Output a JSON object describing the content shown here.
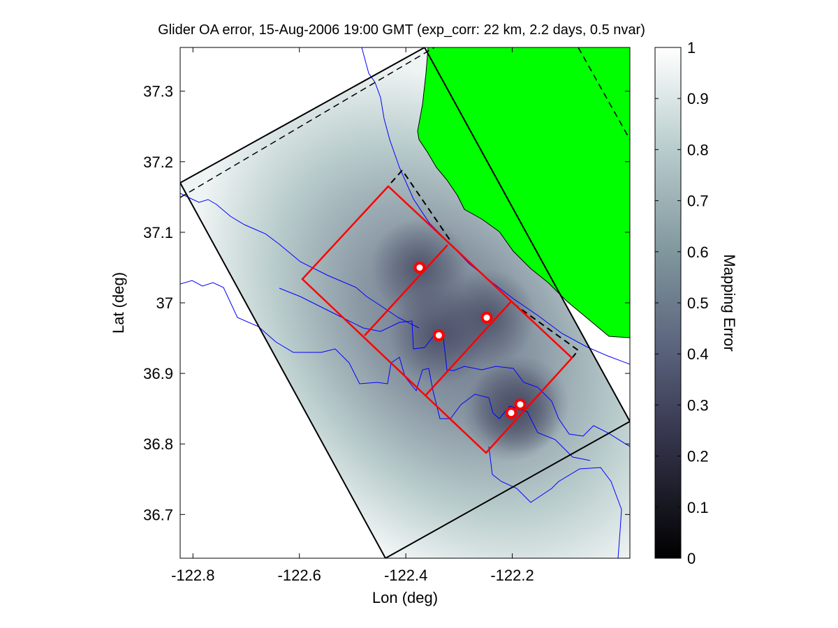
{
  "chart_data": {
    "type": "heatmap",
    "title": "Glider OA error, 15-Aug-2006 19:00 GMT (exp_corr: 22 km, 2.2 days, 0.5 nvar)",
    "xlabel": "Lon (deg)",
    "ylabel": "Lat (deg)",
    "xlim": [
      -122.824,
      -121.979
    ],
    "ylim": [
      36.638,
      37.362
    ],
    "xticks": [
      -122.8,
      -122.6,
      -122.4,
      -122.2
    ],
    "xtick_labels": [
      "-122.8",
      "-122.6",
      "-122.4",
      "-122.2"
    ],
    "yticks": [
      36.7,
      36.8,
      36.9,
      37.0,
      37.1,
      37.2,
      37.3
    ],
    "ytick_labels": [
      "36.7",
      "36.8",
      "36.9",
      "37",
      "37.1",
      "37.2",
      "37.3"
    ],
    "colorbar": {
      "label": "Mapping Error",
      "range": [
        0,
        1
      ],
      "ticks": [
        0,
        0.1,
        0.2,
        0.3,
        0.4,
        0.5,
        0.6,
        0.7,
        0.8,
        0.9,
        1
      ],
      "tick_labels": [
        "0",
        "0.1",
        "0.2",
        "0.3",
        "0.4",
        "0.5",
        "0.6",
        "0.7",
        "0.8",
        "0.9",
        "1"
      ],
      "colormap": "bone"
    },
    "glider_positions": [
      {
        "lon": -122.374,
        "lat": 37.05
      },
      {
        "lon": -122.338,
        "lat": 36.954
      },
      {
        "lon": -122.248,
        "lat": 36.979
      },
      {
        "lon": -122.185,
        "lat": 36.856
      },
      {
        "lon": -122.202,
        "lat": 36.844
      }
    ],
    "colors": {
      "land": "#00ff00",
      "coast": "#0000ff",
      "boxes": "#ff0000",
      "outline": "#000000"
    }
  }
}
